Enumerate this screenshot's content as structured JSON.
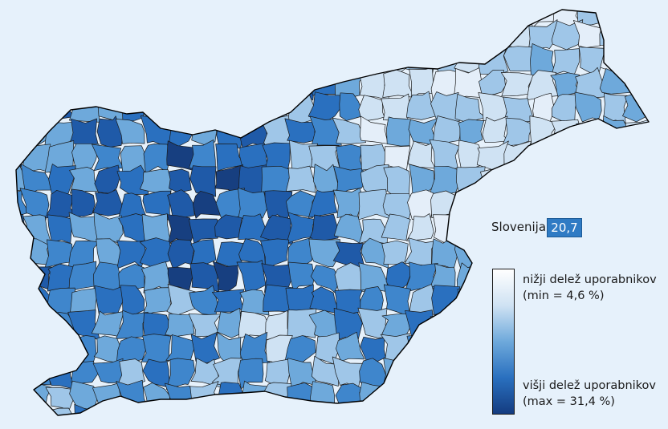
{
  "map": {
    "country_label": "Slovenija",
    "country_value": "20,7"
  },
  "legend": {
    "low_label": "nižji delež uporabnikov",
    "low_detail": "(min = 4,6 %)",
    "high_label": "višji delež uporabnikov",
    "high_detail": "(max = 31,4 %)",
    "min_value": 4.6,
    "max_value": 31.4
  },
  "colors": {
    "background": "#e6f1fb",
    "scale": [
      "#ffffff",
      "#e4eef9",
      "#cfe2f3",
      "#9fc6e8",
      "#6ea9db",
      "#3f86cc",
      "#2a70bf",
      "#1f5aa8",
      "#173f80"
    ],
    "country_value_box": "#2f7bc4"
  }
}
